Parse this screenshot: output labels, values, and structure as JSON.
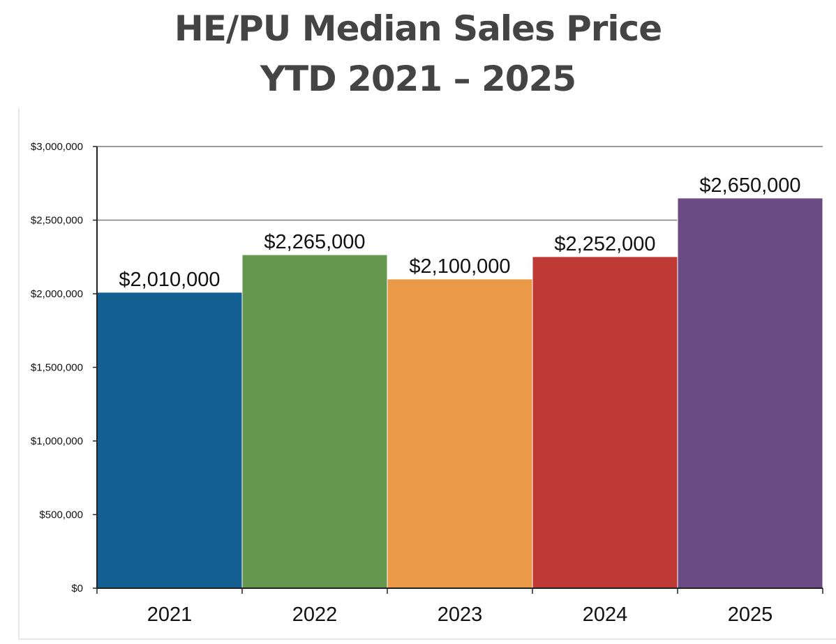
{
  "chart_data": {
    "type": "bar",
    "title_lines": [
      "HE/PU Median Sales Price",
      "YTD 2021 – 2025"
    ],
    "categories": [
      "2021",
      "2022",
      "2023",
      "2024",
      "2025"
    ],
    "values": [
      2010000,
      2265000,
      2100000,
      2252000,
      2650000
    ],
    "data_labels": [
      "$2,010,000",
      "$2,265,000",
      "$2,100,000",
      "$2,252,000",
      "$2,650,000"
    ],
    "colors": [
      "#135F92",
      "#66974F",
      "#EA9A47",
      "#C03A35",
      "#6B4B84"
    ],
    "ylim": [
      0,
      3000000
    ],
    "yticks": [
      0,
      500000,
      1000000,
      1500000,
      2000000,
      2500000,
      3000000
    ],
    "ytick_labels": [
      "$0",
      "$500,000",
      "$1,000,000",
      "$1,500,000",
      "$2,000,000",
      "$2,500,000",
      "$3,000,000"
    ],
    "xlabel": "",
    "ylabel": "",
    "grid": true,
    "legend": "none"
  }
}
